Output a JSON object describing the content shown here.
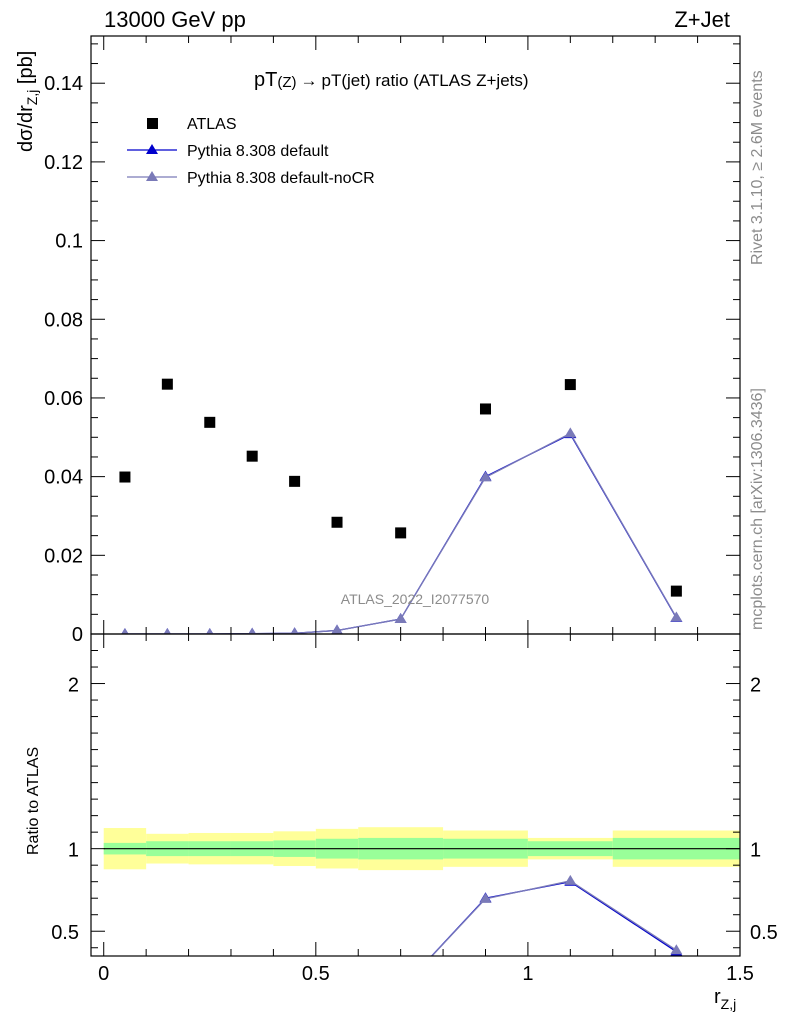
{
  "header": {
    "left": "13000 GeV pp",
    "right": "Z+Jet"
  },
  "side_labels": {
    "rivet": "Rivet 3.1.10, ≥ 2.6M events",
    "mcplots": "mcplots.cern.ch [arXiv:1306.3436]"
  },
  "colors": {
    "data": "#000000",
    "default": "#0000cc",
    "default_noCR": "#7a7ab8",
    "band_inner": "#99ff99",
    "band_outer": "#ffff99"
  },
  "chart_data": [
    {
      "type": "scatter",
      "title_parts": {
        "a": "pT",
        "b": "(Z)",
        "c": "→",
        "d": "pT(jet) ratio (ATLAS Z+jets)"
      },
      "ylabel": {
        "main": "dσ/dr",
        "sub": "Z,j",
        "unit": " [pb]"
      },
      "watermark": "ATLAS_2022_I2077570",
      "xlim": [
        -0.03,
        1.5
      ],
      "ylim": [
        0,
        0.152
      ],
      "yticks": [
        0,
        0.02,
        0.04,
        0.06,
        0.08,
        0.1,
        0.12,
        0.14
      ],
      "ytick_labels": [
        "0",
        "0.02",
        "0.04",
        "0.06",
        "0.08",
        "0.1",
        "0.12",
        "0.14"
      ],
      "legend": [
        "ATLAS",
        "Pythia 8.308 default",
        "Pythia 8.308 default-noCR"
      ],
      "legend_position": "top-left",
      "data": {
        "name": "ATLAS",
        "x": [
          0.05,
          0.15,
          0.25,
          0.35,
          0.45,
          0.55,
          0.7,
          0.9,
          1.1,
          1.35
        ],
        "y": [
          0.0399,
          0.0635,
          0.0538,
          0.0452,
          0.0388,
          0.0284,
          0.0257,
          0.0572,
          0.0634,
          0.0109
        ]
      },
      "series": [
        {
          "name": "Pythia 8.308 default",
          "x": [
            0.05,
            0.15,
            0.25,
            0.35,
            0.45,
            0.55,
            0.7,
            0.9,
            1.1,
            1.35
          ],
          "y": [
            0.0,
            0.0,
            0.0,
            0.0001,
            0.0002,
            0.0009,
            0.0038,
            0.04,
            0.0508,
            0.0041
          ]
        },
        {
          "name": "Pythia 8.308 default-noCR",
          "x": [
            0.05,
            0.15,
            0.25,
            0.35,
            0.45,
            0.55,
            0.7,
            0.9,
            1.1,
            1.35
          ],
          "y": [
            0.0,
            0.0,
            0.0,
            0.0001,
            0.0002,
            0.0009,
            0.0038,
            0.0398,
            0.051,
            0.0042
          ]
        }
      ]
    },
    {
      "type": "line",
      "ylabel": "Ratio to ATLAS",
      "xlabel": {
        "main": "r",
        "sub": "Z,j"
      },
      "xlim": [
        -0.03,
        1.5
      ],
      "ylim": [
        0.35,
        2.3
      ],
      "xticks": [
        0,
        0.5,
        1,
        1.5
      ],
      "xtick_labels": [
        "0",
        "0.5",
        "1",
        "1.5"
      ],
      "yticks": [
        0.5,
        1,
        2
      ],
      "ytick_labels": [
        "0.5",
        "1",
        "2"
      ],
      "bands": {
        "edges": [
          0,
          0.1,
          0.2,
          0.3,
          0.4,
          0.5,
          0.6,
          0.8,
          1.0,
          1.2,
          1.5
        ],
        "inner_lo": [
          0.965,
          0.955,
          0.955,
          0.955,
          0.95,
          0.94,
          0.935,
          0.94,
          0.955,
          0.935
        ],
        "inner_hi": [
          1.035,
          1.045,
          1.045,
          1.045,
          1.05,
          1.06,
          1.065,
          1.06,
          1.045,
          1.065
        ],
        "outer_lo": [
          0.875,
          0.91,
          0.905,
          0.905,
          0.895,
          0.88,
          0.87,
          0.89,
          0.935,
          0.89
        ],
        "outer_hi": [
          1.125,
          1.09,
          1.095,
          1.095,
          1.105,
          1.12,
          1.13,
          1.11,
          1.065,
          1.11
        ]
      },
      "series": [
        {
          "name": "Pythia 8.308 default",
          "x": [
            0.7,
            0.9,
            1.1,
            1.35
          ],
          "y": [
            0.148,
            0.7,
            0.8,
            0.376
          ]
        },
        {
          "name": "Pythia 8.308 default-noCR",
          "x": [
            0.7,
            0.9,
            1.1,
            1.35
          ],
          "y": [
            0.148,
            0.696,
            0.805,
            0.385
          ]
        }
      ]
    }
  ]
}
